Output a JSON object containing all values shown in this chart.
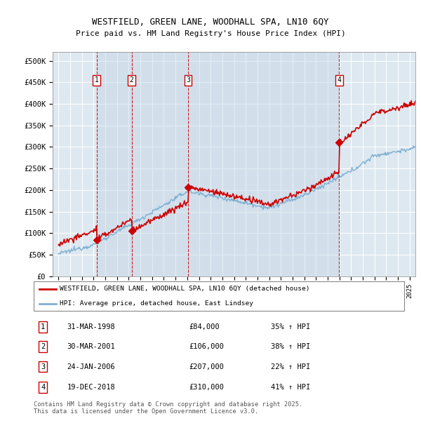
{
  "title1": "WESTFIELD, GREEN LANE, WOODHALL SPA, LN10 6QY",
  "title2": "Price paid vs. HM Land Registry's House Price Index (HPI)",
  "legend_line1": "WESTFIELD, GREEN LANE, WOODHALL SPA, LN10 6QY (detached house)",
  "legend_line2": "HPI: Average price, detached house, East Lindsey",
  "footer": "Contains HM Land Registry data © Crown copyright and database right 2025.\nThis data is licensed under the Open Government Licence v3.0.",
  "transactions": [
    {
      "num": 1,
      "date": "31-MAR-1998",
      "price": 84000,
      "pct": "35%",
      "x_year": 1998.25
    },
    {
      "num": 2,
      "date": "30-MAR-2001",
      "price": 106000,
      "pct": "38%",
      "x_year": 2001.25
    },
    {
      "num": 3,
      "date": "24-JAN-2006",
      "price": 207000,
      "pct": "22%",
      "x_year": 2006.07
    },
    {
      "num": 4,
      "date": "19-DEC-2018",
      "price": 310000,
      "pct": "41%",
      "x_year": 2018.97
    }
  ],
  "ylim": [
    0,
    520000
  ],
  "xlim": [
    1994.5,
    2025.5
  ],
  "yticks": [
    0,
    50000,
    100000,
    150000,
    200000,
    250000,
    300000,
    350000,
    400000,
    450000,
    500000
  ],
  "ytick_labels": [
    "£0",
    "£50K",
    "£100K",
    "£150K",
    "£200K",
    "£250K",
    "£300K",
    "£350K",
    "£400K",
    "£450K",
    "£500K"
  ],
  "background_color": "#dde8f0",
  "grid_color": "#ffffff",
  "red_color": "#cc0000",
  "blue_color": "#7eb0d4",
  "span_color": "#c8d8e8"
}
